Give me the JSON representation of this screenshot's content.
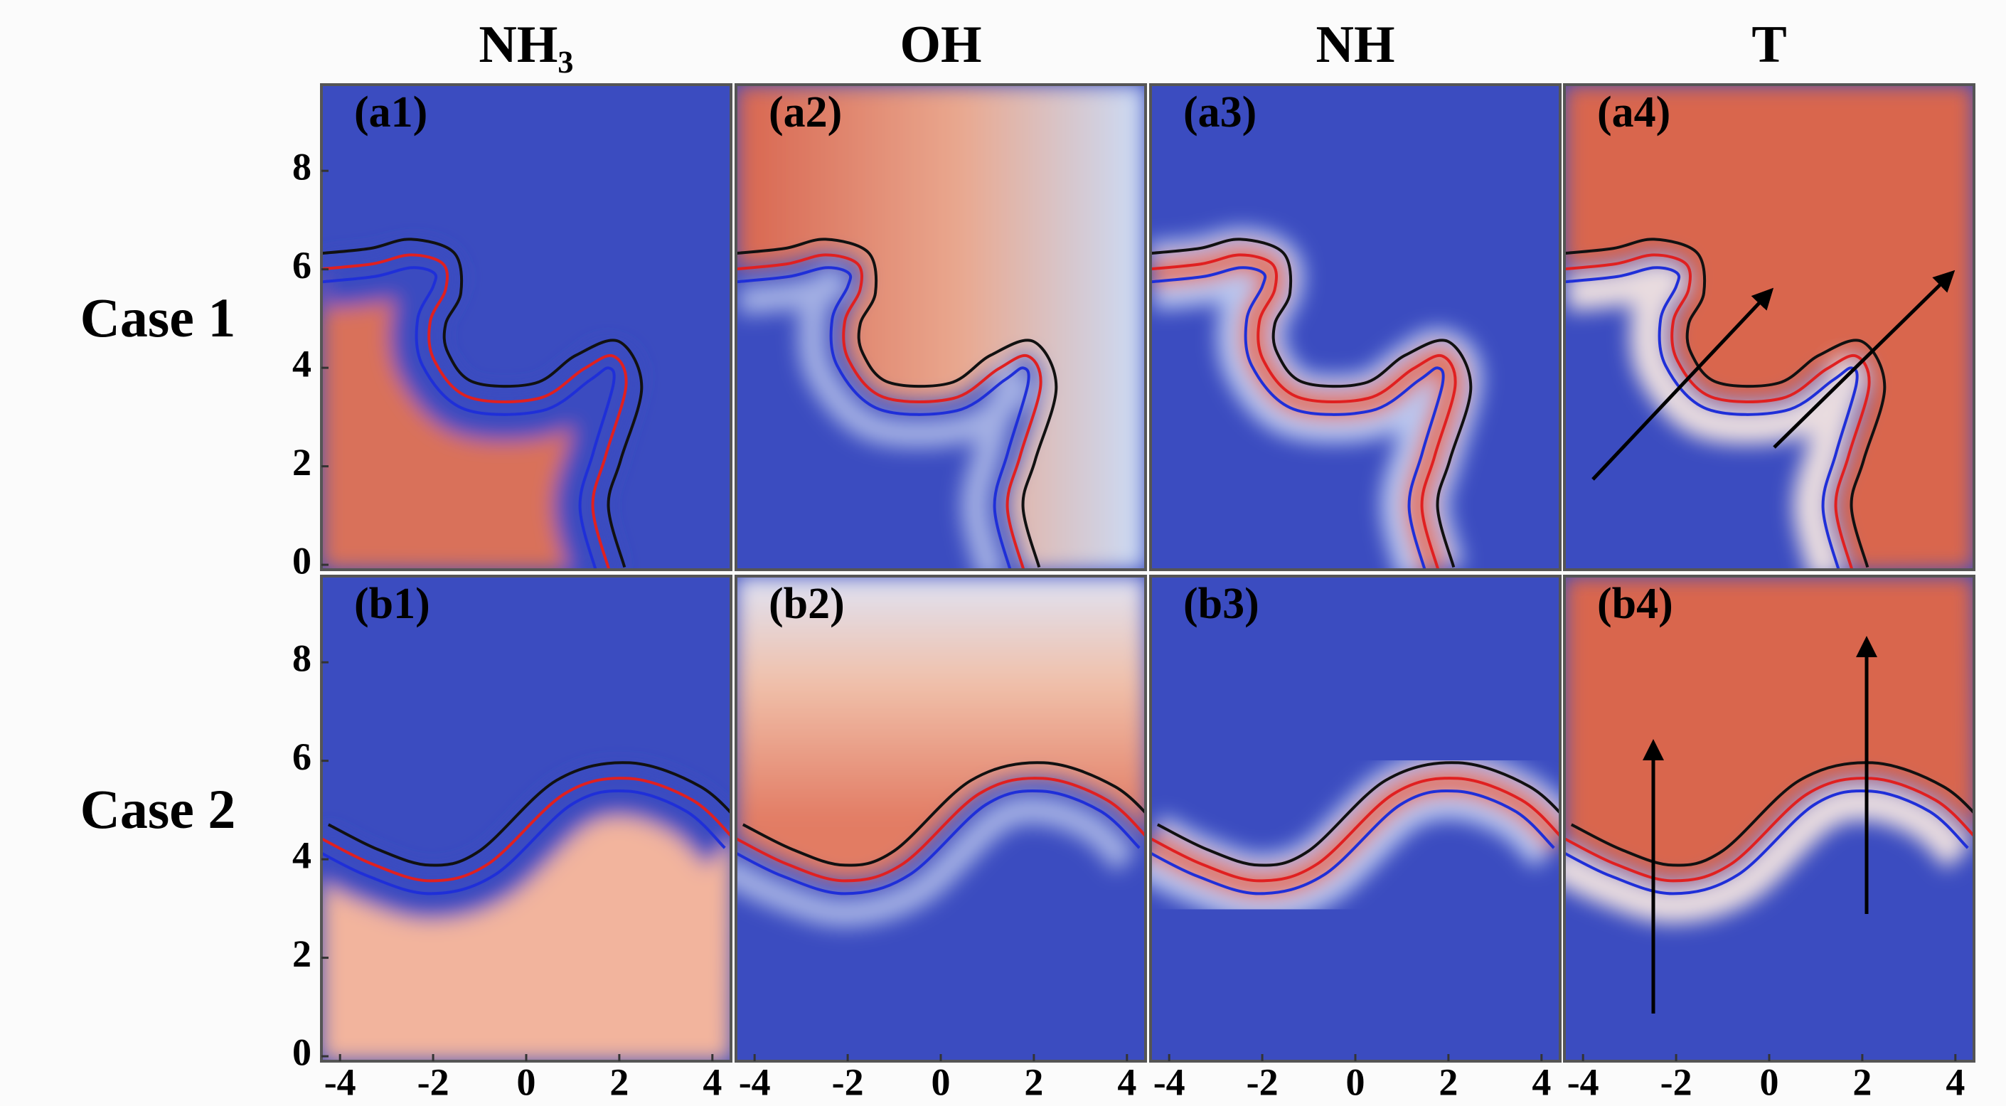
{
  "columns": [
    "NH₃",
    "OH",
    "NH",
    "T"
  ],
  "rows": [
    "Case 1",
    "Case 2"
  ],
  "panels": [
    [
      "(a1)",
      "(a2)",
      "(a3)",
      "(a4)"
    ],
    [
      "(b1)",
      "(b2)",
      "(b3)",
      "(b4)"
    ]
  ],
  "x_axis": {
    "lim": [
      -4.4,
      4.4
    ],
    "ticks": [
      -4,
      -2,
      0,
      2,
      4
    ]
  },
  "y_axis": {
    "lim": [
      -0.1,
      9.75
    ],
    "ticks": [
      0,
      2,
      4,
      6,
      8
    ]
  }
}
